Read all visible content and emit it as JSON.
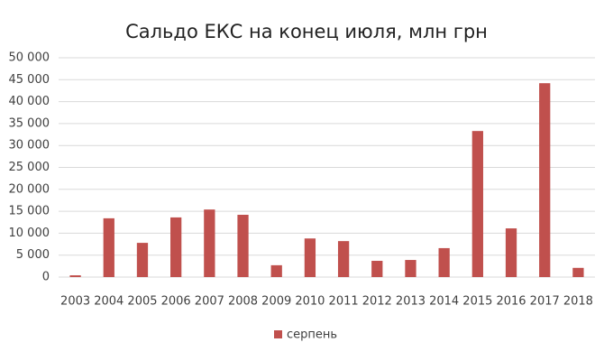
{
  "chart_data": {
    "type": "bar",
    "title": "Сальдо ЕКС на конец июля, млн грн",
    "categories": [
      "2003",
      "2004",
      "2005",
      "2006",
      "2007",
      "2008",
      "2009",
      "2010",
      "2011",
      "2012",
      "2013",
      "2014",
      "2015",
      "2016",
      "2017",
      "2018"
    ],
    "series": [
      {
        "name": "серпень",
        "color": "#c0504d",
        "values": [
          400,
          13400,
          7800,
          13600,
          15400,
          14200,
          2700,
          8800,
          8200,
          3700,
          3900,
          6600,
          33300,
          11100,
          44200,
          2100
        ]
      }
    ],
    "ylim": [
      0,
      50000
    ],
    "yticks": [
      0,
      {
        "value": 5000,
        "label": "5 000"
      },
      {
        "value": 10000,
        "label": "10 000"
      },
      {
        "value": 15000,
        "label": "15 000"
      },
      {
        "value": 20000,
        "label": "20 000"
      },
      {
        "value": 25000,
        "label": "25 000"
      },
      {
        "value": 30000,
        "label": "30 000"
      },
      {
        "value": 35000,
        "label": "35 000"
      },
      {
        "value": 40000,
        "label": "40 000"
      },
      {
        "value": 45000,
        "label": "45 000"
      },
      {
        "value": 50000,
        "label": "50 000"
      }
    ],
    "grid": true,
    "legend": "bottom"
  }
}
